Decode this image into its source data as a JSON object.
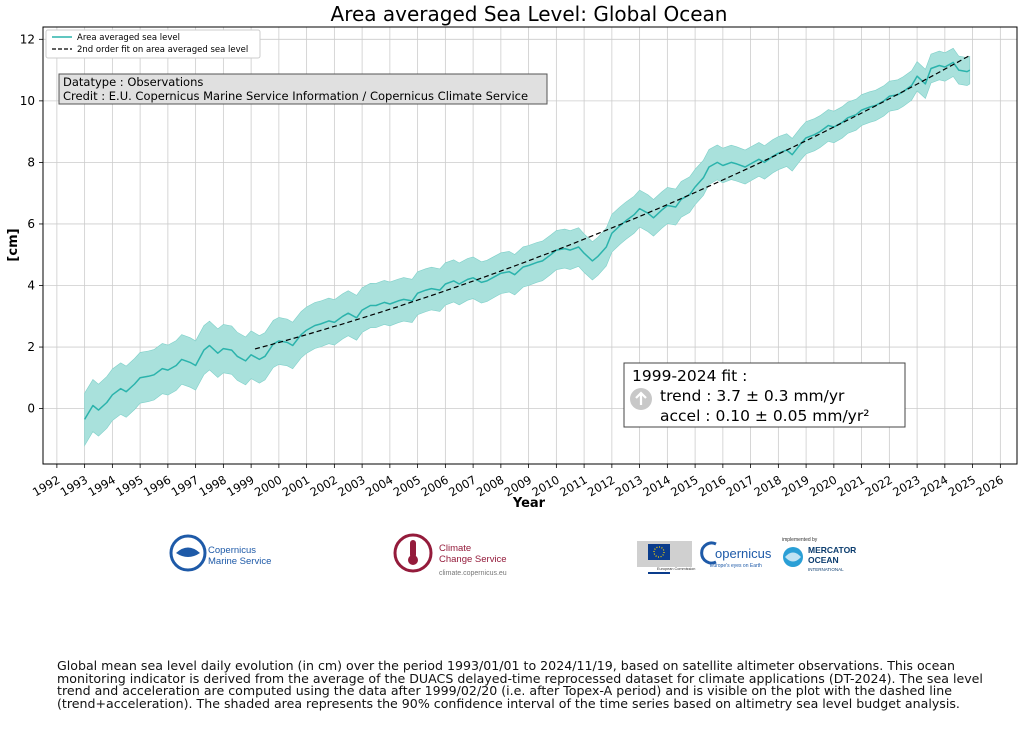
{
  "chart_data": {
    "type": "line",
    "title": "Area averaged Sea Level: Global Ocean",
    "xlabel": "Year",
    "ylabel": "[cm]",
    "xlim": [
      1991.5,
      2026.6
    ],
    "ylim": [
      -1.8,
      12.4
    ],
    "grid": true,
    "legend_position": "top-left",
    "x_ticks": [
      1992,
      1993,
      1994,
      1995,
      1996,
      1997,
      1998,
      1999,
      2000,
      2001,
      2002,
      2003,
      2004,
      2005,
      2006,
      2007,
      2008,
      2009,
      2010,
      2011,
      2012,
      2013,
      2014,
      2015,
      2016,
      2017,
      2018,
      2019,
      2020,
      2021,
      2022,
      2023,
      2024,
      2025,
      2026
    ],
    "y_ticks": [
      0,
      2,
      4,
      6,
      8,
      10,
      12
    ],
    "legend": [
      "Area averaged sea level",
      "2nd order fit on area averaged sea level"
    ],
    "series": [
      {
        "name": "Area averaged sea level",
        "color": "#2bb3ac",
        "x": [
          1993.0,
          1993.3,
          1993.5,
          1993.8,
          1994.0,
          1994.3,
          1994.5,
          1994.8,
          1995.0,
          1995.3,
          1995.5,
          1995.8,
          1996.0,
          1996.3,
          1996.5,
          1996.8,
          1997.0,
          1997.3,
          1997.5,
          1997.8,
          1998.0,
          1998.3,
          1998.5,
          1998.8,
          1999.0,
          1999.3,
          1999.5,
          1999.8,
          2000.0,
          2000.3,
          2000.5,
          2000.8,
          2001.0,
          2001.3,
          2001.5,
          2001.8,
          2002.0,
          2002.3,
          2002.5,
          2002.8,
          2003.0,
          2003.3,
          2003.5,
          2003.8,
          2004.0,
          2004.3,
          2004.5,
          2004.8,
          2005.0,
          2005.3,
          2005.5,
          2005.8,
          2006.0,
          2006.3,
          2006.5,
          2006.8,
          2007.0,
          2007.3,
          2007.5,
          2007.8,
          2008.0,
          2008.3,
          2008.5,
          2008.8,
          2009.0,
          2009.3,
          2009.5,
          2009.8,
          2010.0,
          2010.3,
          2010.5,
          2010.8,
          2011.0,
          2011.3,
          2011.5,
          2011.8,
          2012.0,
          2012.3,
          2012.5,
          2012.8,
          2013.0,
          2013.3,
          2013.5,
          2013.8,
          2014.0,
          2014.3,
          2014.5,
          2014.8,
          2015.0,
          2015.3,
          2015.5,
          2015.8,
          2016.0,
          2016.3,
          2016.5,
          2016.8,
          2017.0,
          2017.3,
          2017.5,
          2017.8,
          2018.0,
          2018.3,
          2018.5,
          2018.8,
          2019.0,
          2019.3,
          2019.5,
          2019.8,
          2020.0,
          2020.3,
          2020.5,
          2020.8,
          2021.0,
          2021.3,
          2021.5,
          2021.8,
          2022.0,
          2022.3,
          2022.5,
          2022.8,
          2023.0,
          2023.3,
          2023.5,
          2023.8,
          2024.0,
          2024.3,
          2024.5,
          2024.8,
          2024.9
        ],
        "values": [
          -0.35,
          0.1,
          -0.05,
          0.2,
          0.45,
          0.65,
          0.55,
          0.8,
          1.0,
          1.05,
          1.1,
          1.3,
          1.25,
          1.4,
          1.6,
          1.5,
          1.4,
          1.9,
          2.05,
          1.8,
          1.95,
          1.9,
          1.7,
          1.55,
          1.75,
          1.6,
          1.7,
          2.1,
          2.2,
          2.15,
          2.05,
          2.4,
          2.55,
          2.7,
          2.75,
          2.85,
          2.8,
          3.0,
          3.1,
          2.95,
          3.2,
          3.35,
          3.35,
          3.45,
          3.4,
          3.5,
          3.55,
          3.5,
          3.75,
          3.85,
          3.9,
          3.85,
          4.05,
          4.15,
          4.05,
          4.2,
          4.25,
          4.1,
          4.15,
          4.3,
          4.4,
          4.45,
          4.35,
          4.6,
          4.65,
          4.75,
          4.8,
          5.0,
          5.15,
          5.2,
          5.15,
          5.25,
          5.05,
          4.8,
          4.95,
          5.25,
          5.7,
          5.95,
          6.1,
          6.3,
          6.5,
          6.35,
          6.2,
          6.45,
          6.6,
          6.55,
          6.8,
          6.95,
          7.2,
          7.5,
          7.85,
          8.0,
          7.9,
          8.0,
          7.95,
          7.85,
          7.95,
          8.1,
          8.0,
          8.2,
          8.3,
          8.4,
          8.25,
          8.6,
          8.8,
          8.9,
          9.0,
          9.2,
          9.15,
          9.3,
          9.45,
          9.55,
          9.7,
          9.8,
          9.85,
          10.0,
          10.15,
          10.2,
          10.3,
          10.5,
          10.8,
          10.55,
          11.05,
          11.15,
          11.1,
          11.25,
          11.0,
          10.95,
          11.0
        ],
        "confidence_interval": "90%",
        "ci_halfwidth_start": 0.85,
        "ci_halfwidth_end": 0.45
      },
      {
        "name": "2nd order fit on area averaged sea level",
        "color": "#000000",
        "style": "dashed",
        "x_range": [
          1999.14,
          2024.9
        ],
        "value_at_2012": 5.87,
        "trend_mm_per_yr": 3.7,
        "accel_mm_per_yr2": 0.1
      }
    ],
    "annotations": {
      "datatype": "Datatype : Observations",
      "credit": "Credit : E.U. Copernicus Marine Service Information / Copernicus Climate Service",
      "fit_title": "1999-2024 fit :",
      "fit_trend": "trend : 3.7 ± 0.3 mm/yr",
      "fit_accel": "accel : 0.10 ± 0.05 mm/yr²"
    }
  },
  "logos": {
    "cmems_line1": "Copernicus",
    "cmems_line2": "Marine Service",
    "c3s_line1": "Climate",
    "c3s_line2": "Change Service",
    "c3s_url": "climate.copernicus.eu",
    "eu_text": "European Commission",
    "copernicus_word": "opernicus",
    "copernicus_tag": "Europe's eyes on Earth",
    "implemented_by": "implemented by",
    "mercator_line1": "MERCATOR",
    "mercator_line2": "OCEAN",
    "mercator_line3": "INTERNATIONAL"
  },
  "caption": "Global mean sea level daily evolution (in cm) over the period 1993/01/01 to 2024/11/19, based on satellite altimeter observations. This ocean monitoring indicator is derived from the average of the DUACS delayed-time reprocessed dataset for climate applications (DT-2024). The sea level trend and acceleration are computed using the data after 1999/02/20 (i.e. after Topex-A period) and is visible on the plot with the dashed line (trend+acceleration). The shaded area represents the 90% confidence interval of the time series based on altimetry sea level budget analysis."
}
